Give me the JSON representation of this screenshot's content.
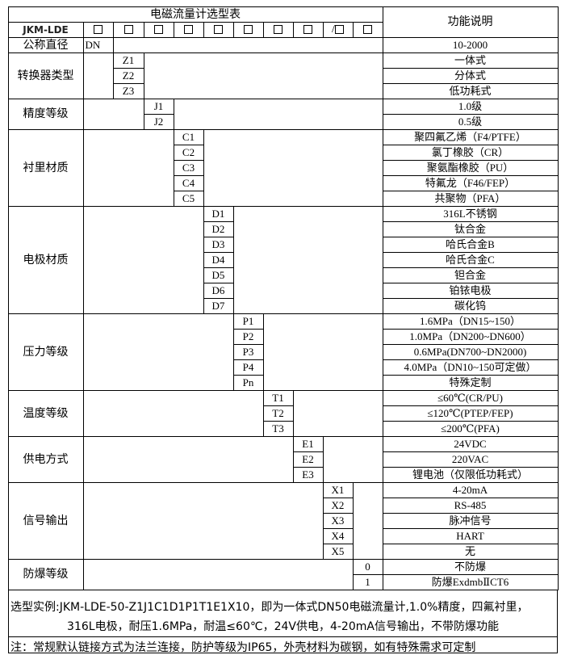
{
  "title": "电磁流量计选型表",
  "function_header": "功能说明",
  "model_prefix": "JKM-LDE",
  "slot_separator": "/",
  "nominal_diameter": {
    "label": "公称直径",
    "code": "DN",
    "description": "10-2000"
  },
  "groups": [
    {
      "label": "转换器类型",
      "codes": [
        "Z1",
        "Z2",
        "Z3"
      ],
      "descriptions": [
        "一体式",
        "分体式",
        "低功耗式"
      ]
    },
    {
      "label": "精度等级",
      "codes": [
        "J1",
        "J2"
      ],
      "descriptions": [
        "1.0级",
        "0.5级"
      ]
    },
    {
      "label": "衬里材质",
      "codes": [
        "C1",
        "C2",
        "C3",
        "C4",
        "C5"
      ],
      "descriptions": [
        "聚四氟乙烯（F4/PTFE）",
        "氯丁橡胶（CR）",
        "聚氨酯橡胶（PU）",
        "特氟龙（F46/FEP）",
        "共聚物（PFA）"
      ]
    },
    {
      "label": "电极材质",
      "codes": [
        "D1",
        "D2",
        "D3",
        "D4",
        "D5",
        "D6",
        "D7"
      ],
      "descriptions": [
        "316L不锈钢",
        "钛合金",
        "哈氏合金B",
        "哈氏合金C",
        "钽合金",
        "铂铱电极",
        "碳化钨"
      ]
    },
    {
      "label": "压力等级",
      "codes": [
        "P1",
        "P2",
        "P3",
        "P4",
        "Pn"
      ],
      "descriptions": [
        "1.6MPa（DN15~150）",
        "1.0MPa（DN200~DN600）",
        "0.6MPa(DN700~DN2000)",
        "4.0MPa（DN10~150可定做）",
        "特殊定制"
      ]
    },
    {
      "label": "温度等级",
      "codes": [
        "T1",
        "T2",
        "T3"
      ],
      "descriptions": [
        "≤60℃(CR/PU)",
        "≤120℃(PTEP/FEP)",
        "≤200℃(PFA)"
      ]
    },
    {
      "label": "供电方式",
      "codes": [
        "E1",
        "E2",
        "E3"
      ],
      "descriptions": [
        "24VDC",
        "220VAC",
        "锂电池（仅限低功耗式）"
      ]
    },
    {
      "label": "信号输出",
      "codes": [
        "X1",
        "X2",
        "X3",
        "X4",
        "X5"
      ],
      "descriptions": [
        "4-20mA",
        "RS-485",
        "脉冲信号",
        "HART",
        "无"
      ]
    },
    {
      "label": "防爆等级",
      "codes": [
        "0",
        "1"
      ],
      "descriptions": [
        "不防爆",
        "防爆ExdmbⅡCT6"
      ]
    }
  ],
  "example": {
    "line1": "选型实例:JKM-LDE-50-Z1J1C1D1P1T1E1X10，即为一体式DN50电磁流量计,1.0%精度，四氟衬里，",
    "line2": "316L电极，耐压1.6MPa，耐温≤60℃，24V供电，4-20mA信号输出，不带防爆功能"
  },
  "note": "注：常规默认链接方式为法兰连接，防护等级为IP65，外壳材料为碳钢，如有特殊需求可定制"
}
